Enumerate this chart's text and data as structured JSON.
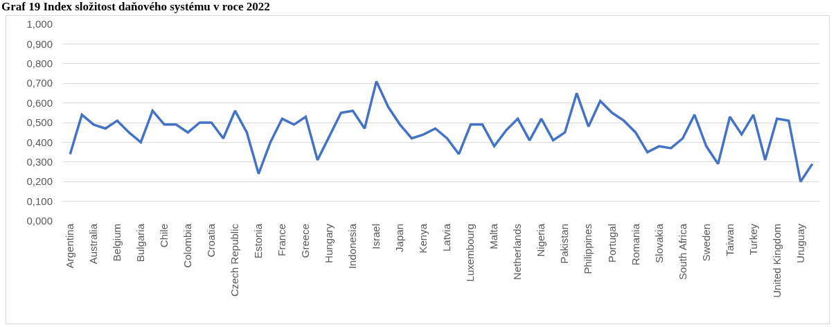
{
  "chart_data": {
    "type": "line",
    "title": "Graf 19 Index složitost daňového systému v roce 2022",
    "categories": [
      "Argentina",
      null,
      "Australia",
      null,
      "Belgium",
      null,
      "Bulgaria",
      null,
      "Chile",
      null,
      "Colombia",
      null,
      "Croatia",
      null,
      "Czech Republic",
      null,
      "Estonia",
      null,
      "France",
      null,
      "Greece",
      null,
      "Hungary",
      null,
      "Indonesia",
      null,
      "Israel",
      null,
      "Japan",
      null,
      "Kenya",
      null,
      "Latvia",
      null,
      "Luxembourg",
      null,
      "Malta",
      null,
      "Netherlands",
      null,
      "Nigeria",
      null,
      "Pakistan",
      null,
      "Philippines",
      null,
      "Portugal",
      null,
      "Romania",
      null,
      "Slovakia",
      null,
      "South Africa",
      null,
      "Sweden",
      null,
      "Taiwan",
      null,
      "Turkey",
      null,
      "United Kingdom",
      null,
      "Uruguay",
      null
    ],
    "series": [
      {
        "color": "#4472c4",
        "values": [
          0.34,
          0.54,
          0.49,
          0.47,
          0.51,
          0.45,
          0.4,
          0.56,
          0.49,
          0.49,
          0.45,
          0.5,
          0.5,
          0.42,
          0.56,
          0.45,
          0.24,
          0.4,
          0.52,
          0.49,
          0.53,
          0.31,
          0.43,
          0.55,
          0.56,
          0.47,
          0.71,
          0.58,
          0.49,
          0.42,
          0.44,
          0.47,
          0.42,
          0.34,
          0.49,
          0.49,
          0.38,
          0.46,
          0.52,
          0.41,
          0.52,
          0.41,
          0.45,
          0.65,
          0.48,
          0.61,
          0.55,
          0.51,
          0.45,
          0.35,
          0.38,
          0.37,
          0.42,
          0.54,
          0.38,
          0.29,
          0.53,
          0.44,
          0.54,
          0.31,
          0.52,
          0.51,
          0.2,
          0.29
        ]
      }
    ],
    "ylim": [
      0,
      1
    ],
    "yticks": [
      {
        "value": 0,
        "label": "0,000"
      },
      {
        "value": 0.1,
        "label": "0,100"
      },
      {
        "value": 0.2,
        "label": "0,200"
      },
      {
        "value": 0.3,
        "label": "0,300"
      },
      {
        "value": 0.4,
        "label": "0,400"
      },
      {
        "value": 0.5,
        "label": "0,500"
      },
      {
        "value": 0.6,
        "label": "0,600"
      },
      {
        "value": 0.7,
        "label": "0,700"
      },
      {
        "value": 0.8,
        "label": "0,800"
      },
      {
        "value": 0.9,
        "label": "0,900"
      },
      {
        "value": 1,
        "label": "1,000"
      }
    ],
    "grid": "y",
    "marker": "none",
    "line_style": "solid"
  }
}
